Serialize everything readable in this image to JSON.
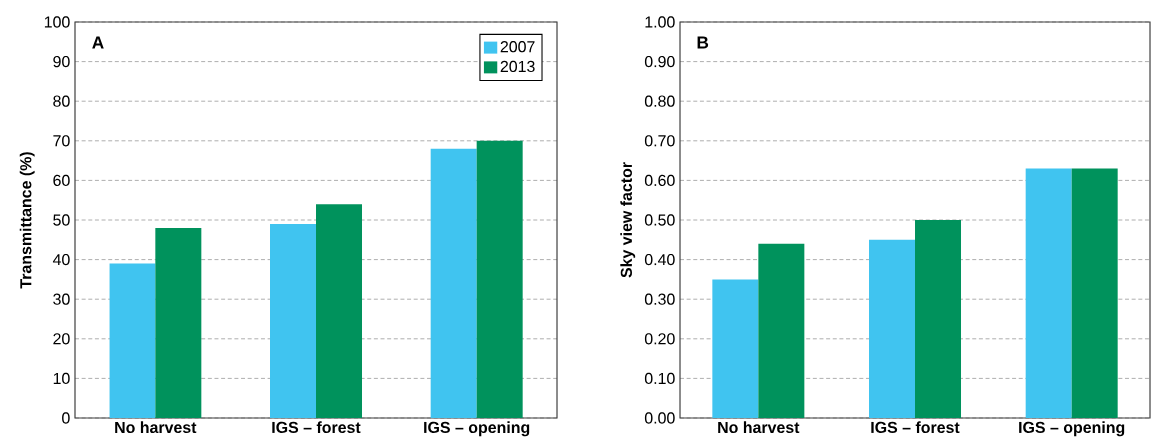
{
  "chart_data": [
    {
      "type": "bar",
      "ylabel": "Transmittance (%)",
      "annotations": [
        "A"
      ],
      "categories": [
        "No harvest",
        "IGS – forest",
        "IGS – opening"
      ],
      "series": [
        {
          "name": "2007",
          "color": "#40c4f0",
          "values": [
            39,
            49,
            68
          ]
        },
        {
          "name": "2013",
          "color": "#00925c",
          "values": [
            48,
            54,
            70
          ]
        }
      ],
      "ylim": [
        0,
        100
      ],
      "yticks": [
        0,
        10,
        20,
        30,
        40,
        50,
        60,
        70,
        80,
        90,
        100
      ],
      "grid": "y",
      "legend": "top right"
    },
    {
      "type": "bar",
      "ylabel": "Sky view factor",
      "annotations": [
        "B"
      ],
      "categories": [
        "No harvest",
        "IGS – forest",
        "IGS – opening"
      ],
      "series": [
        {
          "color": "#40c4f0",
          "values": [
            0.35,
            0.45,
            0.63
          ]
        },
        {
          "color": "#00925c",
          "values": [
            0.44,
            0.5,
            0.63
          ]
        }
      ],
      "ylim": [
        0,
        1
      ],
      "yticks": [
        {
          "value": 0,
          "label": "0.00"
        },
        {
          "value": 0.1,
          "label": "0.10"
        },
        {
          "value": 0.2,
          "label": "0.20"
        },
        {
          "value": 0.3,
          "label": "0.30"
        },
        {
          "value": 0.4,
          "label": "0.40"
        },
        {
          "value": 0.5,
          "label": "0.50"
        },
        {
          "value": 0.6,
          "label": "0.60"
        },
        {
          "value": 0.7,
          "label": "0.70"
        },
        {
          "value": 0.8,
          "label": "0.80"
        },
        {
          "value": 0.9,
          "label": "0.90"
        },
        {
          "value": 1,
          "label": "1.00"
        }
      ],
      "grid": "y",
      "legend": false
    }
  ]
}
